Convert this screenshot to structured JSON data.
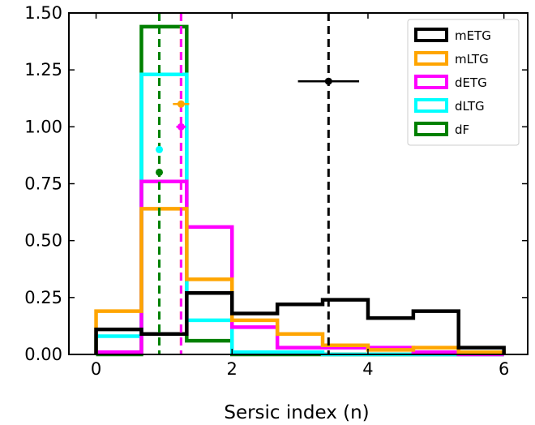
{
  "chart_data": {
    "type": "histogram",
    "title": "",
    "xlabel": "Sersic index (n)",
    "ylabel": "",
    "xlim": [
      -0.4,
      6.35
    ],
    "ylim": [
      0,
      1.5
    ],
    "bin_edges": [
      0,
      0.667,
      1.333,
      2.0,
      2.667,
      3.333,
      4.0,
      4.667,
      5.333,
      6.0
    ],
    "xticks": [
      0,
      2,
      4,
      6
    ],
    "yticks": [
      0.0,
      0.25,
      0.5,
      0.75,
      1.0,
      1.25,
      1.5
    ],
    "xtick_labels": [
      "0",
      "2",
      "4",
      "6"
    ],
    "ytick_labels": [
      "0.00",
      "0.25",
      "0.50",
      "0.75",
      "1.00",
      "1.25",
      "1.50"
    ],
    "grid": false,
    "legend_position": "top-right",
    "series": [
      {
        "name": "mETG",
        "color": "#000000",
        "values": [
          0.11,
          0.09,
          0.27,
          0.18,
          0.22,
          0.24,
          0.16,
          0.19,
          0.03
        ],
        "marker": {
          "x": 3.42,
          "y": 1.2,
          "xerr": 0.45
        },
        "vline": 3.42
      },
      {
        "name": "mLTG",
        "color": "#ffa500",
        "values": [
          0.19,
          0.64,
          0.33,
          0.15,
          0.09,
          0.04,
          0.02,
          0.03,
          0.01
        ],
        "marker": {
          "x": 1.25,
          "y": 1.1,
          "xerr": 0.12
        },
        "vline": 1.25
      },
      {
        "name": "dETG",
        "color": "#ff00ff",
        "values": [
          0.01,
          0.76,
          0.56,
          0.12,
          0.03,
          0.03,
          0.03,
          0.01,
          0.0
        ],
        "marker": {
          "x": 1.25,
          "y": 1.0,
          "xerr": 0.07
        },
        "vline": 1.25
      },
      {
        "name": "dLTG",
        "color": "#00ffff",
        "values": [
          0.08,
          1.23,
          0.15,
          0.01,
          0.01,
          0.0,
          0.0,
          0.0,
          0.0
        ],
        "marker": {
          "x": 0.93,
          "y": 0.9,
          "xerr": 0.0
        },
        "vline": 0.93
      },
      {
        "name": "dF",
        "color": "#008000",
        "values": [
          0.0,
          1.44,
          0.06,
          0.0,
          0.0,
          0.0,
          0.0,
          0.0,
          0.0
        ],
        "marker": {
          "x": 0.93,
          "y": 0.8,
          "xerr": 0.0
        },
        "vline": 0.93
      }
    ]
  }
}
